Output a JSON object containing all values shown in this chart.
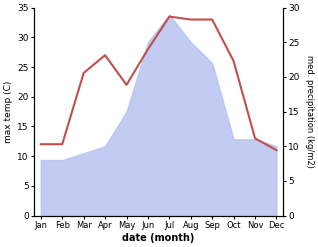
{
  "months": [
    "Jan",
    "Feb",
    "Mar",
    "Apr",
    "May",
    "Jun",
    "Jul",
    "Aug",
    "Sep",
    "Oct",
    "Nov",
    "Dec"
  ],
  "month_positions": [
    0,
    1,
    2,
    3,
    4,
    5,
    6,
    7,
    8,
    9,
    10,
    11
  ],
  "temperature": [
    12,
    12,
    24,
    27,
    22,
    28,
    33.5,
    33,
    33,
    26,
    13,
    11
  ],
  "precipitation": [
    8,
    8,
    9,
    10,
    15,
    25,
    29,
    25,
    22,
    11,
    11,
    10
  ],
  "temp_color": "#c0504d",
  "precip_fill_color": "#b8c4f0",
  "temp_ylim": [
    0,
    35
  ],
  "precip_ylim": [
    0,
    30
  ],
  "temp_yticks": [
    0,
    5,
    10,
    15,
    20,
    25,
    30,
    35
  ],
  "precip_yticks": [
    0,
    5,
    10,
    15,
    20,
    25,
    30
  ],
  "xlabel": "date (month)",
  "ylabel_left": "max temp (C)",
  "ylabel_right": "med. precipitation (kg/m2)",
  "figsize": [
    3.18,
    2.47
  ],
  "dpi": 100
}
